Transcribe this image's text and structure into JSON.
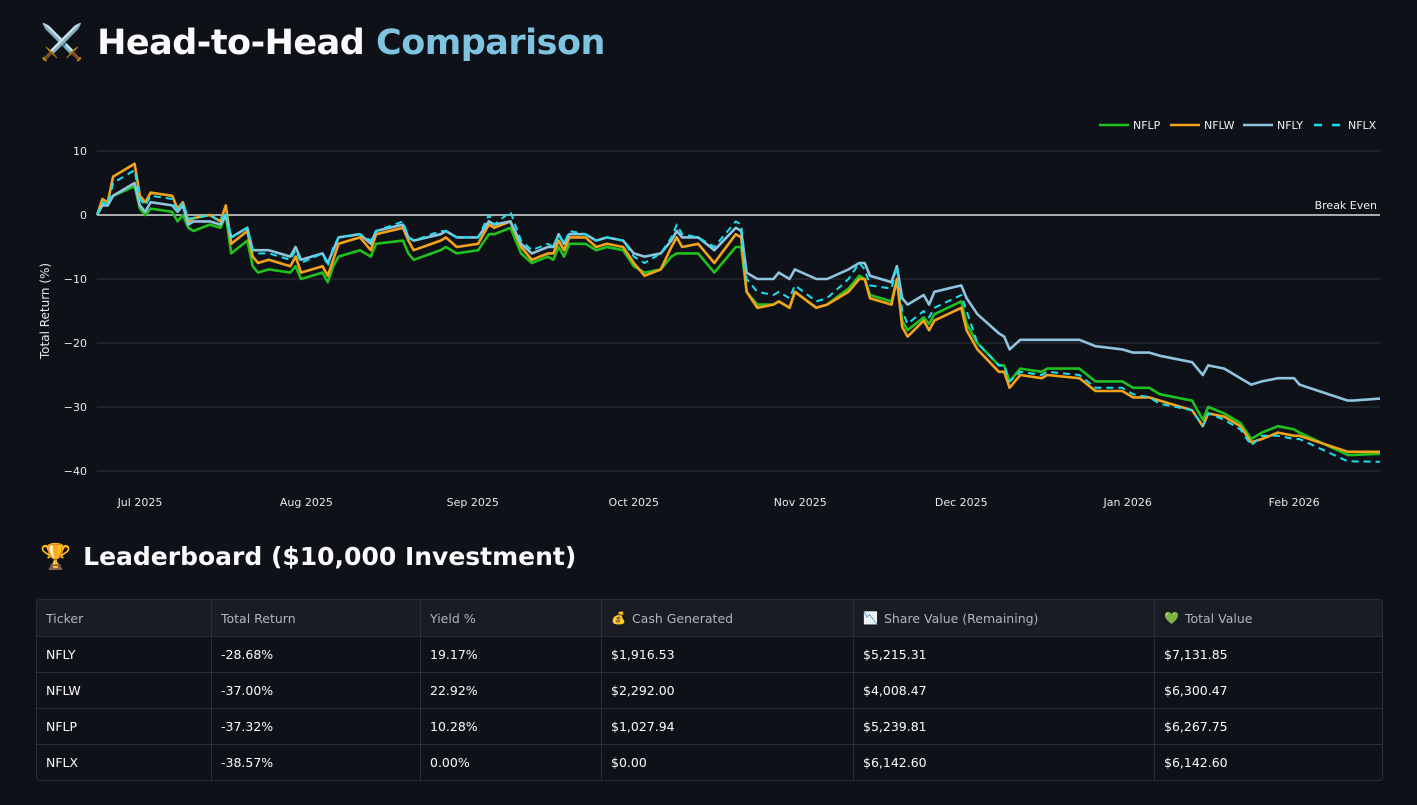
{
  "header": {
    "icon": "⚔️",
    "title_main": "Head-to-Head",
    "title_accent": "Comparison",
    "accent_color": "#7ec3e0"
  },
  "chart_data": {
    "type": "line",
    "ylabel": "Total Return (%)",
    "ylim": [
      -41.5,
      11.5
    ],
    "xlim": [
      "2025-06-23",
      "2026-02-17"
    ],
    "grid": true,
    "legend_placement": "top-right",
    "y_ticks": [
      {
        "value": 10,
        "label": "10"
      },
      {
        "value": 0,
        "label": "0"
      },
      {
        "value": -10,
        "label": "−10"
      },
      {
        "value": -20,
        "label": "−20"
      },
      {
        "value": -30,
        "label": "−30"
      },
      {
        "value": -40,
        "label": "−40"
      }
    ],
    "x_ticks": [
      {
        "date": "2025-07-01",
        "label": "Jul 2025"
      },
      {
        "date": "2025-08-01",
        "label": "Aug 2025"
      },
      {
        "date": "2025-09-01",
        "label": "Sep 2025"
      },
      {
        "date": "2025-10-01",
        "label": "Oct 2025"
      },
      {
        "date": "2025-11-01",
        "label": "Nov 2025"
      },
      {
        "date": "2025-12-01",
        "label": "Dec 2025"
      },
      {
        "date": "2026-01-01",
        "label": "Jan 2026"
      },
      {
        "date": "2026-02-01",
        "label": "Feb 2026"
      }
    ],
    "annotation": {
      "value": 0,
      "label": "Break Even",
      "color": "#aaaaaa"
    },
    "x": [
      "2025-06-23",
      "2025-06-24",
      "2025-06-25",
      "2025-06-26",
      "2025-06-30",
      "2025-07-01",
      "2025-07-02",
      "2025-07-03",
      "2025-07-07",
      "2025-07-08",
      "2025-07-09",
      "2025-07-10",
      "2025-07-11",
      "2025-07-14",
      "2025-07-16",
      "2025-07-17",
      "2025-07-18",
      "2025-07-21",
      "2025-07-22",
      "2025-07-23",
      "2025-07-25",
      "2025-07-29",
      "2025-07-30",
      "2025-07-31",
      "2025-08-04",
      "2025-08-05",
      "2025-08-06",
      "2025-08-07",
      "2025-08-11",
      "2025-08-13",
      "2025-08-14",
      "2025-08-19",
      "2025-08-20",
      "2025-08-21",
      "2025-08-26",
      "2025-08-27",
      "2025-08-29",
      "2025-09-02",
      "2025-09-04",
      "2025-09-05",
      "2025-09-08",
      "2025-09-10",
      "2025-09-12",
      "2025-09-15",
      "2025-09-16",
      "2025-09-17",
      "2025-09-18",
      "2025-09-19",
      "2025-09-22",
      "2025-09-24",
      "2025-09-26",
      "2025-09-29",
      "2025-10-01",
      "2025-10-03",
      "2025-10-06",
      "2025-10-08",
      "2025-10-09",
      "2025-10-10",
      "2025-10-13",
      "2025-10-16",
      "2025-10-20",
      "2025-10-21",
      "2025-10-22",
      "2025-10-24",
      "2025-10-27",
      "2025-10-28",
      "2025-10-30",
      "2025-10-31",
      "2025-11-04",
      "2025-11-06",
      "2025-11-10",
      "2025-11-12",
      "2025-11-13",
      "2025-11-14",
      "2025-11-18",
      "2025-11-19",
      "2025-11-20",
      "2025-11-21",
      "2025-11-24",
      "2025-11-25",
      "2025-11-26",
      "2025-12-01",
      "2025-12-02",
      "2025-12-04",
      "2025-12-08",
      "2025-12-09",
      "2025-12-10",
      "2025-12-12",
      "2025-12-16",
      "2025-12-17",
      "2025-12-23",
      "2025-12-26",
      "2025-12-31",
      "2026-01-02",
      "2026-01-05",
      "2026-01-07",
      "2026-01-13",
      "2026-01-15",
      "2026-01-16",
      "2026-01-19",
      "2026-01-22",
      "2026-01-24",
      "2026-01-26",
      "2026-01-29",
      "2026-02-01",
      "2026-02-02",
      "2026-02-11",
      "2026-02-12",
      "2026-02-17"
    ],
    "series": [
      {
        "name": "NFLP",
        "color": "#1fc11f",
        "dash": false,
        "values": [
          0,
          2,
          1.5,
          3,
          4.5,
          1,
          0,
          1,
          0.5,
          -1,
          0,
          -2,
          -2.5,
          -1.5,
          -2,
          0,
          -6,
          -4,
          -8,
          -9,
          -8.5,
          -9,
          -8,
          -10,
          -9,
          -10.5,
          -8,
          -6.5,
          -5.5,
          -6.5,
          -4.5,
          -4,
          -6,
          -7,
          -5.5,
          -5,
          -6,
          -5.5,
          -3,
          -3,
          -2,
          -6,
          -7.5,
          -6.5,
          -7,
          -5,
          -6.5,
          -4.5,
          -4.5,
          -5.5,
          -5,
          -5.5,
          -8,
          -9,
          -8.5,
          -6.5,
          -6,
          -6,
          -6,
          -9,
          -5,
          -5,
          -12,
          -14,
          -14,
          -13.5,
          -14.5,
          -12,
          -14.5,
          -14,
          -11.5,
          -9.5,
          -10,
          -12.5,
          -13.5,
          -10,
          -16.5,
          -18,
          -16,
          -17,
          -15.5,
          -13.5,
          -17,
          -20,
          -23.5,
          -23.5,
          -26,
          -24,
          -24.5,
          -24,
          -24,
          -26,
          -26,
          -27,
          -27,
          -28,
          -29,
          -32,
          -30,
          -31,
          -32.5,
          -35,
          -34,
          -33,
          -33.5,
          -34,
          -37.5,
          -37.5,
          -37.32
        ]
      },
      {
        "name": "NFLW",
        "color": "#f5a21b",
        "dash": false,
        "values": [
          0,
          2.5,
          2,
          6,
          8,
          3,
          2,
          3.5,
          3,
          1,
          2,
          -1,
          -0.5,
          0,
          -1,
          1.5,
          -4.5,
          -2.5,
          -6.5,
          -7.5,
          -7,
          -8,
          -6.5,
          -9,
          -8,
          -9.5,
          -7,
          -4.5,
          -3.5,
          -5.5,
          -3,
          -2,
          -4,
          -5.5,
          -4,
          -3.5,
          -5,
          -4.5,
          -1.5,
          -2,
          -1,
          -5,
          -7,
          -6,
          -6,
          -4,
          -5.5,
          -3.5,
          -3.5,
          -5,
          -4.5,
          -5,
          -7.5,
          -9.5,
          -8.5,
          -5,
          -3.5,
          -5,
          -4.5,
          -7.5,
          -3,
          -3.5,
          -12,
          -14.5,
          -14,
          -13.5,
          -14.5,
          -12,
          -14.5,
          -14,
          -12,
          -10,
          -10,
          -13,
          -14,
          -10,
          -17.5,
          -19,
          -16.5,
          -18,
          -16.5,
          -14.5,
          -18,
          -21,
          -24.5,
          -24.5,
          -27,
          -25,
          -25.5,
          -25,
          -25.5,
          -27.5,
          -27.5,
          -28.5,
          -28.5,
          -29,
          -30.5,
          -33,
          -31,
          -31.5,
          -33,
          -35.5,
          -35,
          -34,
          -34.5,
          -34.5,
          -37,
          -37,
          -37.0
        ]
      },
      {
        "name": "NFLY",
        "color": "#8fc4de",
        "dash": false,
        "values": [
          0,
          1.5,
          1.5,
          3,
          5,
          1.5,
          0.5,
          2,
          1.5,
          0.5,
          1.5,
          -1.5,
          -1,
          -1,
          -1.5,
          0,
          -3.5,
          -2,
          -5.5,
          -5.5,
          -5.5,
          -6.5,
          -5,
          -7,
          -6,
          -7.5,
          -5.5,
          -3.5,
          -3,
          -4.5,
          -2.5,
          -1.5,
          -3.5,
          -4,
          -3,
          -2.5,
          -3.5,
          -3.5,
          -1,
          -1.5,
          -1,
          -4.5,
          -6,
          -5,
          -5,
          -3,
          -4.5,
          -3,
          -3,
          -4,
          -3.5,
          -4,
          -6,
          -6.5,
          -6,
          -4,
          -2.5,
          -3.5,
          -3.5,
          -5.5,
          -2,
          -2.5,
          -9,
          -10,
          -10,
          -9,
          -10,
          -8.5,
          -10,
          -10,
          -8.5,
          -7.5,
          -7.5,
          -9.5,
          -10.5,
          -8,
          -13,
          -14,
          -12.5,
          -14,
          -12,
          -11,
          -13,
          -15.5,
          -18.5,
          -19,
          -21,
          -19.5,
          -19.5,
          -19.5,
          -19.5,
          -20.5,
          -21,
          -21.5,
          -21.5,
          -22,
          -23,
          -25,
          -23.5,
          -24,
          -25.5,
          -26.5,
          -26,
          -25.5,
          -25.5,
          -26.5,
          -29,
          -29,
          -28.68
        ]
      },
      {
        "name": "NFLX",
        "color": "#19e0ef",
        "dash": true,
        "values": [
          0,
          2,
          1.5,
          5,
          7,
          2.5,
          1.5,
          3,
          2.5,
          0.5,
          2,
          -0.5,
          -0.5,
          0,
          -1,
          0.5,
          -3.5,
          -2,
          -5.5,
          -6,
          -6,
          -7,
          -5.5,
          -7.5,
          -6,
          -8,
          -5,
          -3.5,
          -3,
          -4,
          -2.5,
          -1,
          -3.5,
          -4,
          -2.5,
          -2.5,
          -3.5,
          -3.5,
          0,
          -1.5,
          0.5,
          -4,
          -5.5,
          -4.5,
          -5,
          -3,
          -4.5,
          -2.5,
          -3,
          -4,
          -3.5,
          -4,
          -6.5,
          -7.5,
          -6,
          -3.5,
          -1.5,
          -3,
          -3.5,
          -5,
          -1,
          -1.5,
          -10,
          -12,
          -12.5,
          -12,
          -13,
          -11,
          -13.5,
          -13,
          -10,
          -7.5,
          -8.5,
          -11,
          -11.5,
          -8,
          -15,
          -17,
          -15,
          -16,
          -14.5,
          -12.5,
          -15,
          -20,
          -23.5,
          -23.5,
          -26,
          -24.5,
          -25,
          -24.5,
          -25,
          -27,
          -27,
          -28,
          -28.5,
          -29.5,
          -30.5,
          -33,
          -31,
          -32,
          -33.5,
          -36,
          -34.5,
          -34.5,
          -35,
          -35,
          -38.5,
          -38.5,
          -38.57
        ]
      }
    ]
  },
  "leaderboard": {
    "icon": "🏆",
    "title": "Leaderboard ($10,000 Investment)",
    "columns": [
      {
        "label": "Ticker",
        "icon": ""
      },
      {
        "label": "Total Return",
        "icon": ""
      },
      {
        "label": "Yield %",
        "icon": ""
      },
      {
        "label": "Cash Generated",
        "icon": "💰"
      },
      {
        "label": "Share Value (Remaining)",
        "icon": "📉"
      },
      {
        "label": "Total Value",
        "icon": "💚"
      }
    ],
    "rows": [
      [
        "NFLY",
        "-28.68%",
        "19.17%",
        "$1,916.53",
        "$5,215.31",
        "$7,131.85"
      ],
      [
        "NFLW",
        "-37.00%",
        "22.92%",
        "$2,292.00",
        "$4,008.47",
        "$6,300.47"
      ],
      [
        "NFLP",
        "-37.32%",
        "10.28%",
        "$1,027.94",
        "$5,239.81",
        "$6,267.75"
      ],
      [
        "NFLX",
        "-38.57%",
        "0.00%",
        "$0.00",
        "$6,142.60",
        "$6,142.60"
      ]
    ]
  }
}
